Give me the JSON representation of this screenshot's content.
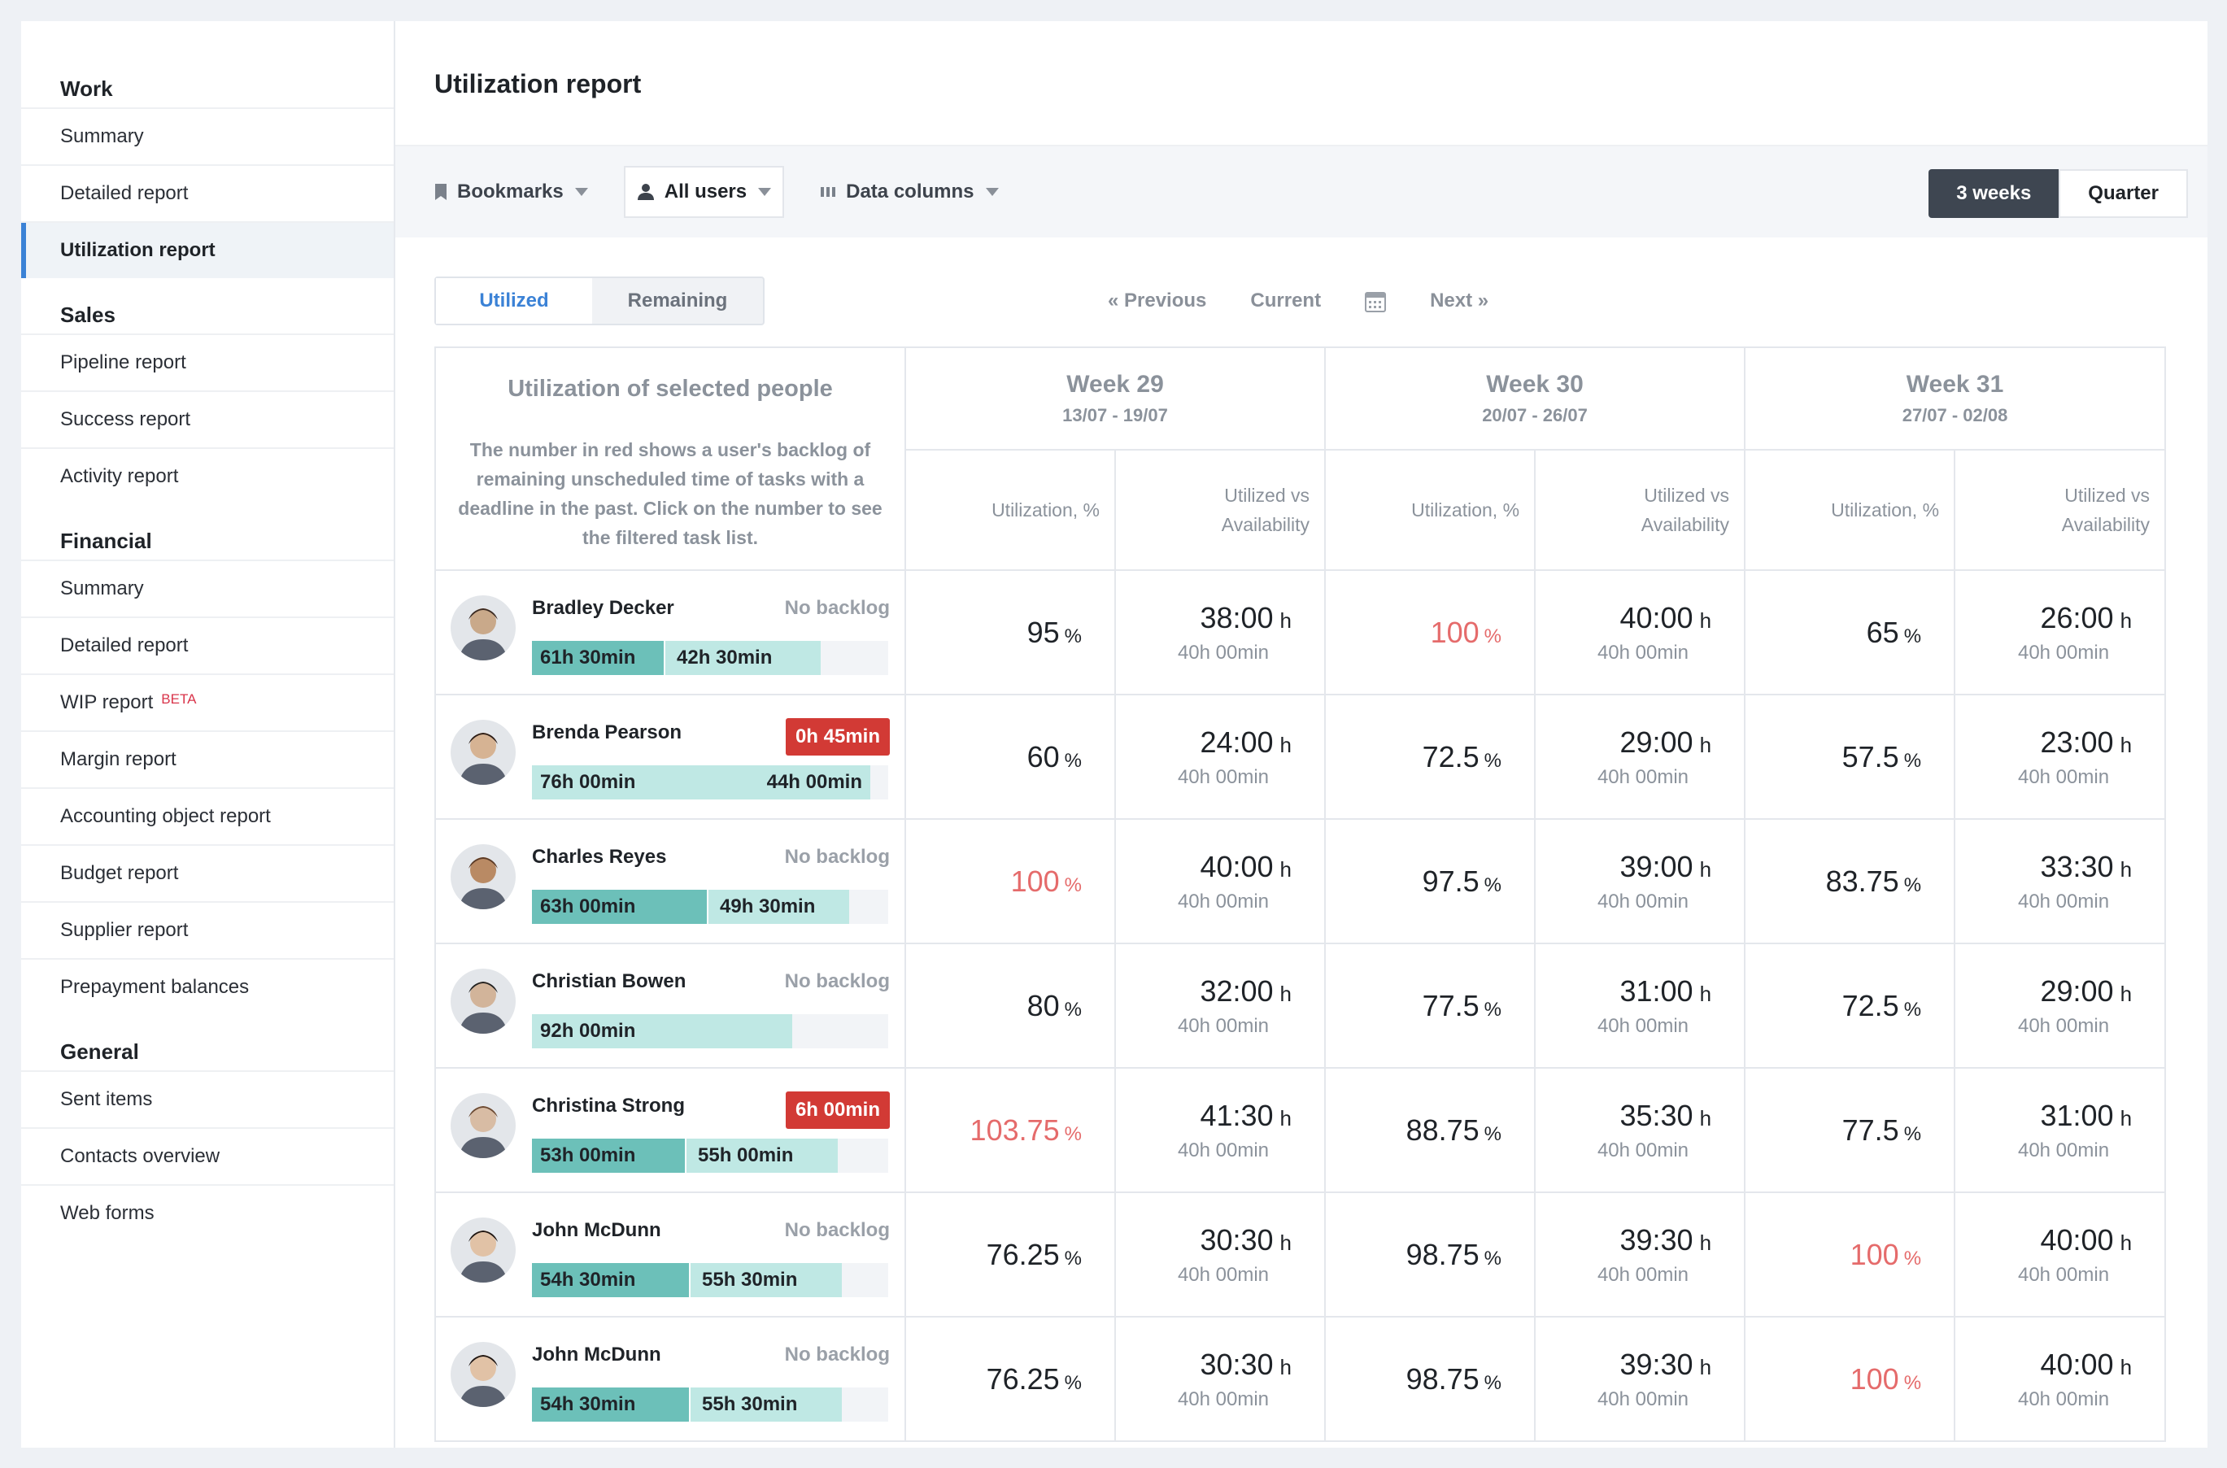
{
  "sidebar": {
    "sections": [
      {
        "title": "Work",
        "items": [
          "Summary",
          "Detailed report",
          "Utilization report"
        ]
      },
      {
        "title": "Sales",
        "items": [
          "Pipeline report",
          "Success report",
          "Activity report"
        ]
      },
      {
        "title": "Financial",
        "items": [
          "Summary",
          "Detailed report",
          "WIP report",
          "Margin report",
          "Accounting object report",
          "Budget report",
          "Supplier report",
          "Prepayment balances"
        ]
      },
      {
        "title": "General",
        "items": [
          "Sent items",
          "Contacts overview",
          "Web forms"
        ]
      }
    ],
    "active_item": "Utilization report",
    "beta_label": "BETA"
  },
  "page_title": "Utilization report",
  "toolbar": {
    "bookmarks_label": "Bookmarks",
    "users_label": "All users",
    "columns_label": "Data columns",
    "period_options": [
      "3 weeks",
      "Quarter"
    ],
    "period_selected": "3 weeks"
  },
  "view_toggle": {
    "utilized": "Utilized",
    "remaining": "Remaining",
    "selected": "Utilized"
  },
  "nav": {
    "previous": "« Previous",
    "current": "Current",
    "next": "Next »"
  },
  "table": {
    "intro_title": "Utilization of selected people",
    "intro_text": "The number in red shows a user's backlog of remaining unscheduled time of tasks with a deadline in the past. Click on the number to see the filtered task list.",
    "col_util": "Utilization, %",
    "col_avail_1": "Utilized vs",
    "col_avail_2": "Availability",
    "pct_unit": "%",
    "hour_unit": "h",
    "weeks": [
      {
        "name": "Week 29",
        "range": "13/07 - 19/07"
      },
      {
        "name": "Week 30",
        "range": "20/07 - 26/07"
      },
      {
        "name": "Week 31",
        "range": "27/07 - 02/08"
      }
    ],
    "rows": [
      {
        "name": "Bradley Decker",
        "backlog": "No backlog",
        "backlog_red": false,
        "bar_a": "61h 30min",
        "bar_a_frac": 0.37,
        "bar_b": "42h 30min",
        "bar_b_frac": 0.44,
        "weeks": [
          {
            "util": "95",
            "over": false,
            "used": "38:00",
            "avail": "40h 00min"
          },
          {
            "util": "100",
            "over": true,
            "used": "40:00",
            "avail": "40h 00min"
          },
          {
            "util": "65",
            "over": false,
            "used": "26:00",
            "avail": "40h 00min"
          }
        ]
      },
      {
        "name": "Brenda Pearson",
        "backlog": "0h 45min",
        "backlog_red": true,
        "bar_a": "76h 00min",
        "bar_a_frac": 0,
        "bar_b": "44h 00min",
        "bar_b_frac": 0.95,
        "weeks": [
          {
            "util": "60",
            "over": false,
            "used": "24:00",
            "avail": "40h 00min"
          },
          {
            "util": "72.5",
            "over": false,
            "used": "29:00",
            "avail": "40h 00min"
          },
          {
            "util": "57.5",
            "over": false,
            "used": "23:00",
            "avail": "40h 00min"
          }
        ]
      },
      {
        "name": "Charles Reyes",
        "backlog": "No backlog",
        "backlog_red": false,
        "bar_a": "63h 00min",
        "bar_a_frac": 0.49,
        "bar_b": "49h 30min",
        "bar_b_frac": 0.4,
        "weeks": [
          {
            "util": "100",
            "over": true,
            "used": "40:00",
            "avail": "40h 00min"
          },
          {
            "util": "97.5",
            "over": false,
            "used": "39:00",
            "avail": "40h 00min"
          },
          {
            "util": "83.75",
            "over": false,
            "used": "33:30",
            "avail": "40h 00min"
          }
        ]
      },
      {
        "name": "Christian Bowen",
        "backlog": "No backlog",
        "backlog_red": false,
        "bar_a": "92h 00min",
        "bar_a_frac": 0,
        "bar_b": "",
        "bar_b_frac": 0.73,
        "weeks": [
          {
            "util": "80",
            "over": false,
            "used": "32:00",
            "avail": "40h 00min"
          },
          {
            "util": "77.5",
            "over": false,
            "used": "31:00",
            "avail": "40h 00min"
          },
          {
            "util": "72.5",
            "over": false,
            "used": "29:00",
            "avail": "40h 00min"
          }
        ]
      },
      {
        "name": "Christina Strong",
        "backlog": "6h 00min",
        "backlog_red": true,
        "bar_a": "53h 00min",
        "bar_a_frac": 0.43,
        "bar_b": "55h 00min",
        "bar_b_frac": 0.43,
        "weeks": [
          {
            "util": "103.75",
            "over": true,
            "used": "41:30",
            "avail": "40h 00min"
          },
          {
            "util": "88.75",
            "over": false,
            "used": "35:30",
            "avail": "40h 00min"
          },
          {
            "util": "77.5",
            "over": false,
            "used": "31:00",
            "avail": "40h 00min"
          }
        ]
      },
      {
        "name": "John McDunn",
        "backlog": "No backlog",
        "backlog_red": false,
        "bar_a": "54h 30min",
        "bar_a_frac": 0.44,
        "bar_b": "55h 30min",
        "bar_b_frac": 0.43,
        "weeks": [
          {
            "util": "76.25",
            "over": false,
            "used": "30:30",
            "avail": "40h 00min"
          },
          {
            "util": "98.75",
            "over": false,
            "used": "39:30",
            "avail": "40h 00min"
          },
          {
            "util": "100",
            "over": true,
            "used": "40:00",
            "avail": "40h 00min"
          }
        ]
      },
      {
        "name": "John McDunn",
        "backlog": "No backlog",
        "backlog_red": false,
        "bar_a": "54h 30min",
        "bar_a_frac": 0.44,
        "bar_b": "55h 30min",
        "bar_b_frac": 0.43,
        "weeks": [
          {
            "util": "76.25",
            "over": false,
            "used": "30:30",
            "avail": "40h 00min"
          },
          {
            "util": "98.75",
            "over": false,
            "used": "39:30",
            "avail": "40h 00min"
          },
          {
            "util": "100",
            "over": true,
            "used": "40:00",
            "avail": "40h 00min"
          }
        ]
      }
    ]
  },
  "colors": {
    "accent": "#3b82d6",
    "over": "#e56b6b",
    "backlog_red": "#d23a35",
    "bar_dark": "#6cc0b9",
    "bar_light": "#bfe8e4"
  },
  "icons": {
    "bookmarks": "bookmark-icon",
    "users": "user-icon",
    "columns": "columns-icon",
    "calendar": "calendar-icon"
  }
}
